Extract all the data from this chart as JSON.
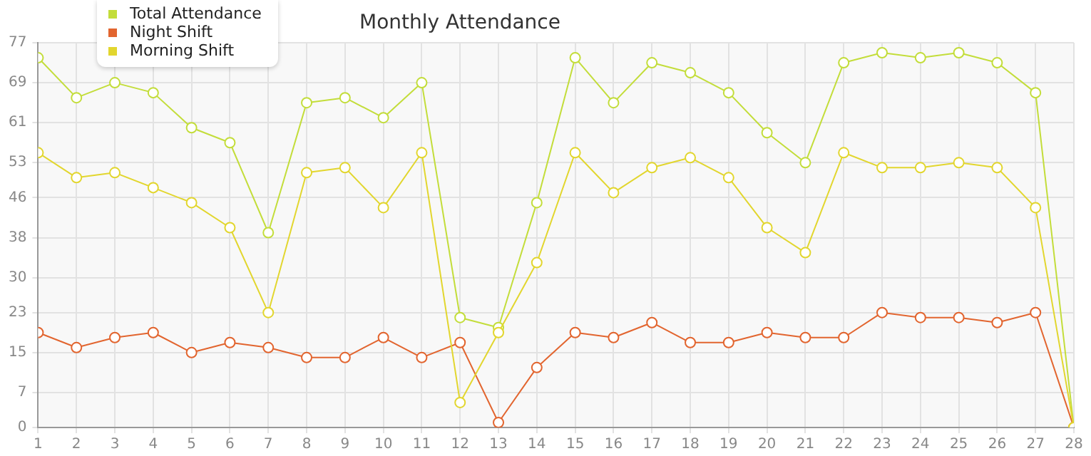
{
  "chart_data": {
    "type": "line",
    "title": "Monthly Attendance",
    "x": [
      1,
      2,
      3,
      4,
      5,
      6,
      7,
      8,
      9,
      10,
      11,
      12,
      13,
      14,
      15,
      16,
      17,
      18,
      19,
      20,
      21,
      22,
      23,
      24,
      25,
      26,
      27,
      28
    ],
    "series": [
      {
        "name": "Total Attendance",
        "color": "#c3dd3a",
        "values": [
          74,
          66,
          69,
          67,
          60,
          57,
          39,
          65,
          66,
          62,
          69,
          22,
          20,
          45,
          74,
          65,
          73,
          71,
          67,
          59,
          53,
          73,
          75,
          74,
          75,
          73,
          67,
          0
        ]
      },
      {
        "name": "Night Shift",
        "color": "#e2652f",
        "values": [
          19,
          16,
          18,
          19,
          15,
          17,
          16,
          14,
          14,
          18,
          14,
          17,
          1,
          12,
          19,
          18,
          21,
          17,
          17,
          19,
          18,
          18,
          23,
          22,
          22,
          21,
          23,
          0
        ]
      },
      {
        "name": "Morning Shift",
        "color": "#e2d62e",
        "values": [
          55,
          50,
          51,
          48,
          45,
          40,
          23,
          51,
          52,
          44,
          55,
          5,
          19,
          33,
          55,
          47,
          52,
          54,
          50,
          40,
          35,
          55,
          52,
          52,
          53,
          52,
          44,
          0
        ]
      }
    ],
    "xlim": [
      1,
      28
    ],
    "xticks": [
      1,
      2,
      3,
      4,
      5,
      6,
      7,
      8,
      9,
      10,
      11,
      12,
      13,
      14,
      15,
      16,
      17,
      18,
      19,
      20,
      21,
      22,
      23,
      24,
      25,
      26,
      27,
      28
    ],
    "ylim": [
      0,
      77
    ],
    "yticks": [
      0,
      7,
      15,
      23,
      30,
      38,
      46,
      53,
      61,
      69,
      77
    ],
    "grid": true,
    "legend": "top left",
    "marker": "circle",
    "line_style": "solid"
  }
}
